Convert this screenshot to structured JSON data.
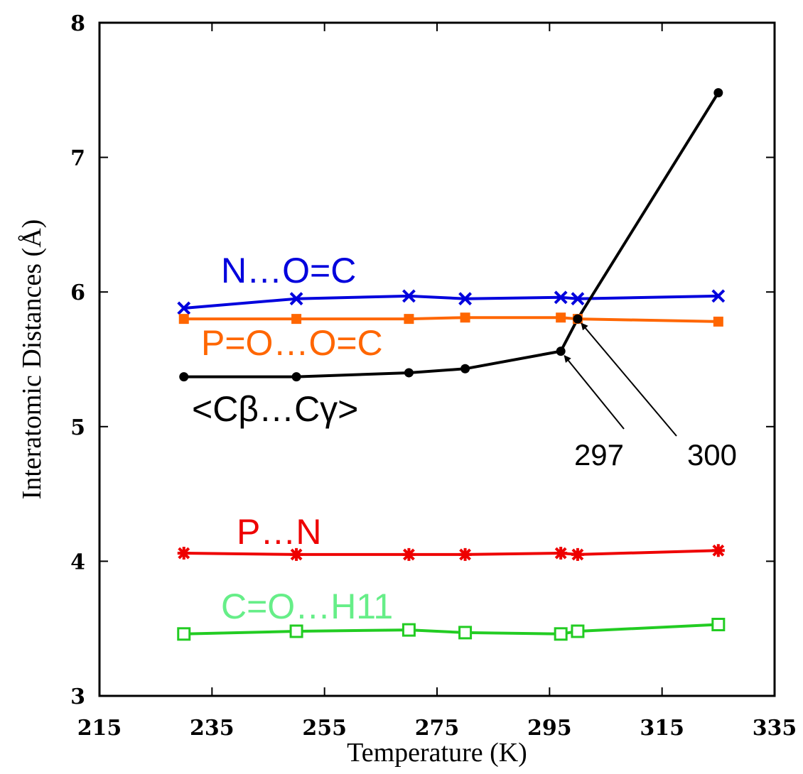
{
  "chart_data": {
    "type": "line",
    "xlabel": "Temperature (K)",
    "ylabel": "Interatomic Distances (Å)",
    "xlim": [
      215,
      335
    ],
    "ylim": [
      3,
      8
    ],
    "xticks": [
      "215",
      "235",
      "255",
      "275",
      "295",
      "315",
      "335"
    ],
    "yticks": [
      "3",
      "4",
      "5",
      "6",
      "7",
      "8"
    ],
    "x": [
      230,
      250,
      270,
      280,
      297,
      300,
      325
    ],
    "series": [
      {
        "name": "N…O=C",
        "color": "#0000dd",
        "marker": "x",
        "values": [
          5.88,
          5.95,
          5.97,
          5.95,
          5.96,
          5.95,
          5.97
        ],
        "label_pos": [
          311,
          380
        ]
      },
      {
        "name": "P=O…O=C",
        "color": "#ff6600",
        "marker": "filled-square",
        "values": [
          5.8,
          5.8,
          5.8,
          5.81,
          5.81,
          5.8,
          5.78
        ],
        "label_pos": [
          283,
          482
        ]
      },
      {
        "name": "<Cβ…Cγ>",
        "color": "#000000",
        "marker": "filled-circle",
        "values": [
          5.37,
          5.37,
          5.4,
          5.43,
          5.56,
          5.8,
          7.48
        ],
        "label_pos": [
          270,
          575
        ]
      },
      {
        "name": "P…N",
        "color": "#ee0000",
        "marker": "star",
        "values": [
          4.06,
          4.05,
          4.05,
          4.05,
          4.06,
          4.05,
          4.08
        ],
        "label_pos": [
          333,
          748
        ]
      },
      {
        "name": "C=O…H11",
        "color": "#66ee88",
        "marker": "open-square",
        "values": [
          3.46,
          3.48,
          3.49,
          3.47,
          3.46,
          3.48,
          3.53
        ],
        "line_color": "#22cc22",
        "label_pos": [
          311,
          853
        ]
      }
    ],
    "annotations": [
      {
        "text": "297",
        "x": 297,
        "y": 5.56
      },
      {
        "text": "300",
        "x": 300,
        "y": 5.8
      }
    ],
    "grid": false,
    "legend": "none (series labeled inline)"
  }
}
